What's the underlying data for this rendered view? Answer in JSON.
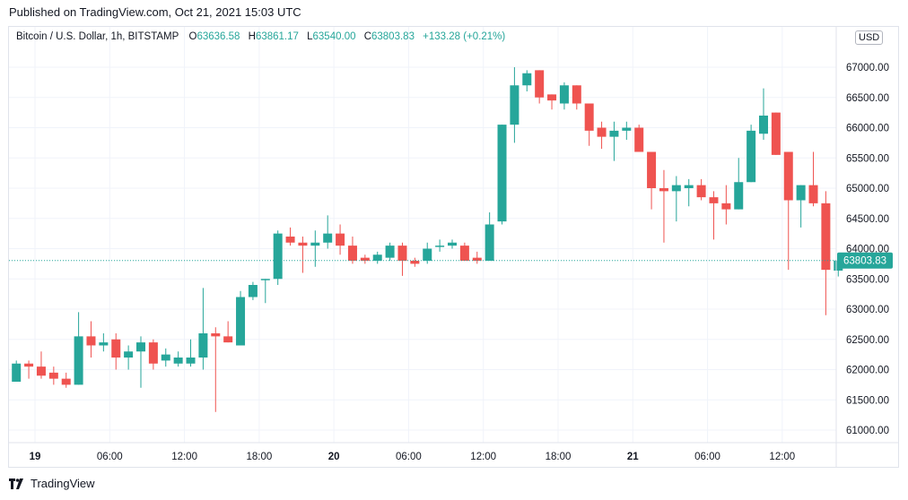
{
  "header": {
    "published": "Published on TradingView.com, Oct 21, 2021 15:03 UTC"
  },
  "legend": {
    "symbol": "Bitcoin / U.S. Dollar, 1h, BITSTAMP",
    "o_label": "O",
    "o_value": "63636.58",
    "h_label": "H",
    "h_value": "63861.17",
    "l_label": "L",
    "l_value": "63540.00",
    "c_label": "C",
    "c_value": "63803.83",
    "change": "+133.28 (+0.21%)"
  },
  "currency": "USD",
  "footer": {
    "brand": "TradingView"
  },
  "colors": {
    "up": "#26a69a",
    "down": "#ef5350",
    "grid": "#f0f3fa",
    "axis_text": "#131722"
  },
  "chart_data": {
    "type": "candlestick",
    "ylim": [
      60850,
      67500
    ],
    "yticks": [
      61000,
      61500,
      62000,
      62500,
      63000,
      63500,
      64000,
      64500,
      65000,
      65500,
      66000,
      66500,
      67000
    ],
    "ytick_labels": [
      "61000.00",
      "61500.00",
      "62000.00",
      "62500.00",
      "63000.00",
      "63500.00",
      "64000.00",
      "64500.00",
      "65000.00",
      "65500.00",
      "66000.00",
      "66500.00",
      "67000.00"
    ],
    "xticks": [
      {
        "index": 1.5,
        "label": "19",
        "bold": true
      },
      {
        "index": 7.5,
        "label": "06:00",
        "bold": false
      },
      {
        "index": 13.5,
        "label": "12:00",
        "bold": false
      },
      {
        "index": 19.5,
        "label": "18:00",
        "bold": false
      },
      {
        "index": 25.5,
        "label": "20",
        "bold": true
      },
      {
        "index": 31.5,
        "label": "06:00",
        "bold": false
      },
      {
        "index": 37.5,
        "label": "12:00",
        "bold": false
      },
      {
        "index": 43.5,
        "label": "18:00",
        "bold": false
      },
      {
        "index": 49.5,
        "label": "21",
        "bold": true
      },
      {
        "index": 55.5,
        "label": "06:00",
        "bold": false
      },
      {
        "index": 61.5,
        "label": "12:00",
        "bold": false
      }
    ],
    "last_price": 63803.83,
    "last_price_label": "63803.83",
    "candles": [
      {
        "o": 61800,
        "h": 62150,
        "l": 61800,
        "c": 62100
      },
      {
        "o": 62100,
        "h": 62150,
        "l": 61850,
        "c": 62050
      },
      {
        "o": 62050,
        "h": 62300,
        "l": 61850,
        "c": 61900
      },
      {
        "o": 61950,
        "h": 62050,
        "l": 61750,
        "c": 61850
      },
      {
        "o": 61850,
        "h": 61950,
        "l": 61700,
        "c": 61750
      },
      {
        "o": 61750,
        "h": 62950,
        "l": 61750,
        "c": 62550
      },
      {
        "o": 62550,
        "h": 62800,
        "l": 62200,
        "c": 62400
      },
      {
        "o": 62400,
        "h": 62600,
        "l": 62300,
        "c": 62450
      },
      {
        "o": 62500,
        "h": 62600,
        "l": 62000,
        "c": 62200
      },
      {
        "o": 62200,
        "h": 62400,
        "l": 62000,
        "c": 62300
      },
      {
        "o": 62300,
        "h": 62550,
        "l": 61700,
        "c": 62450
      },
      {
        "o": 62450,
        "h": 62500,
        "l": 62000,
        "c": 62100
      },
      {
        "o": 62150,
        "h": 62350,
        "l": 62050,
        "c": 62250
      },
      {
        "o": 62100,
        "h": 62300,
        "l": 62050,
        "c": 62200
      },
      {
        "o": 62100,
        "h": 62500,
        "l": 62050,
        "c": 62200
      },
      {
        "o": 62200,
        "h": 63350,
        "l": 62000,
        "c": 62600
      },
      {
        "o": 62600,
        "h": 62700,
        "l": 61300,
        "c": 62550
      },
      {
        "o": 62550,
        "h": 62800,
        "l": 62450,
        "c": 62450
      },
      {
        "o": 62400,
        "h": 63300,
        "l": 62400,
        "c": 63200
      },
      {
        "o": 63200,
        "h": 63450,
        "l": 63150,
        "c": 63400
      },
      {
        "o": 63500,
        "h": 63500,
        "l": 63100,
        "c": 63500
      },
      {
        "o": 63500,
        "h": 64300,
        "l": 63400,
        "c": 64250
      },
      {
        "o": 64200,
        "h": 64350,
        "l": 64050,
        "c": 64100
      },
      {
        "o": 64100,
        "h": 64200,
        "l": 63600,
        "c": 64050
      },
      {
        "o": 64050,
        "h": 64300,
        "l": 63700,
        "c": 64100
      },
      {
        "o": 64100,
        "h": 64550,
        "l": 64000,
        "c": 64250
      },
      {
        "o": 64250,
        "h": 64400,
        "l": 63900,
        "c": 64050
      },
      {
        "o": 64050,
        "h": 64200,
        "l": 63750,
        "c": 63800
      },
      {
        "o": 63850,
        "h": 63900,
        "l": 63750,
        "c": 63800
      },
      {
        "o": 63800,
        "h": 63950,
        "l": 63750,
        "c": 63900
      },
      {
        "o": 63850,
        "h": 64100,
        "l": 63800,
        "c": 64050
      },
      {
        "o": 64050,
        "h": 64100,
        "l": 63550,
        "c": 63800
      },
      {
        "o": 63800,
        "h": 63850,
        "l": 63700,
        "c": 63750
      },
      {
        "o": 63800,
        "h": 64100,
        "l": 63750,
        "c": 64000
      },
      {
        "o": 64050,
        "h": 64150,
        "l": 63950,
        "c": 64050
      },
      {
        "o": 64050,
        "h": 64150,
        "l": 64000,
        "c": 64100
      },
      {
        "o": 64050,
        "h": 64100,
        "l": 63850,
        "c": 63800
      },
      {
        "o": 63850,
        "h": 63950,
        "l": 63750,
        "c": 63800
      },
      {
        "o": 63800,
        "h": 64600,
        "l": 63800,
        "c": 64400
      },
      {
        "o": 64450,
        "h": 66050,
        "l": 64400,
        "c": 66050
      },
      {
        "o": 66050,
        "h": 67000,
        "l": 65750,
        "c": 66700
      },
      {
        "o": 66700,
        "h": 66950,
        "l": 66600,
        "c": 66900
      },
      {
        "o": 66950,
        "h": 66950,
        "l": 66400,
        "c": 66500
      },
      {
        "o": 66550,
        "h": 66550,
        "l": 66300,
        "c": 66450
      },
      {
        "o": 66400,
        "h": 66750,
        "l": 66300,
        "c": 66700
      },
      {
        "o": 66700,
        "h": 66700,
        "l": 66300,
        "c": 66400
      },
      {
        "o": 66400,
        "h": 66400,
        "l": 65700,
        "c": 65950
      },
      {
        "o": 66000,
        "h": 66100,
        "l": 65650,
        "c": 65850
      },
      {
        "o": 65850,
        "h": 66100,
        "l": 65450,
        "c": 65950
      },
      {
        "o": 65950,
        "h": 66100,
        "l": 65800,
        "c": 66000
      },
      {
        "o": 66000,
        "h": 66050,
        "l": 65600,
        "c": 65600
      },
      {
        "o": 65600,
        "h": 65600,
        "l": 64650,
        "c": 65000
      },
      {
        "o": 65000,
        "h": 65300,
        "l": 64100,
        "c": 64950
      },
      {
        "o": 64950,
        "h": 65200,
        "l": 64450,
        "c": 65050
      },
      {
        "o": 65000,
        "h": 65150,
        "l": 64700,
        "c": 65050
      },
      {
        "o": 65050,
        "h": 65150,
        "l": 64800,
        "c": 64850
      },
      {
        "o": 64850,
        "h": 64950,
        "l": 64150,
        "c": 64750
      },
      {
        "o": 64750,
        "h": 65050,
        "l": 64400,
        "c": 64650
      },
      {
        "o": 64650,
        "h": 65500,
        "l": 64650,
        "c": 65100
      },
      {
        "o": 65100,
        "h": 66050,
        "l": 65100,
        "c": 65950
      },
      {
        "o": 65900,
        "h": 66650,
        "l": 65800,
        "c": 66200
      },
      {
        "o": 66250,
        "h": 66250,
        "l": 65550,
        "c": 65550
      },
      {
        "o": 65600,
        "h": 65600,
        "l": 63650,
        "c": 64800
      },
      {
        "o": 64800,
        "h": 65050,
        "l": 64350,
        "c": 65050
      },
      {
        "o": 65050,
        "h": 65600,
        "l": 64700,
        "c": 64750
      },
      {
        "o": 64750,
        "h": 64950,
        "l": 62900,
        "c": 63650
      },
      {
        "o": 63636.58,
        "h": 63861.17,
        "l": 63540,
        "c": 63803.83
      }
    ]
  }
}
